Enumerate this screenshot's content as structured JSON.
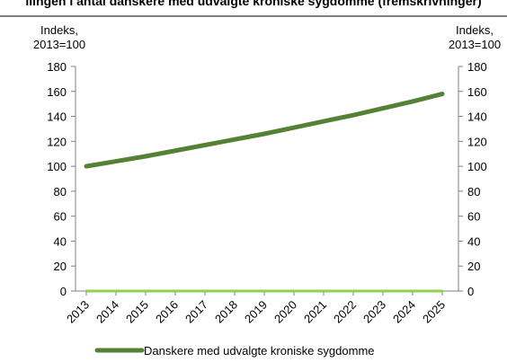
{
  "page": {
    "top_caption": "llingen i antal danskere med udvalgte kroniske sygdomme (fremskrivninger)"
  },
  "colors": {
    "line_main": "#548235",
    "line_zero": "#92d050",
    "axis": "#808080",
    "text": "#000000"
  },
  "chart_data": {
    "type": "line",
    "title": "",
    "ylabel_left": [
      "Indeks,",
      "2013=100"
    ],
    "ylabel_right": [
      "Indeks,",
      "2013=100"
    ],
    "xlabel": "",
    "ylim": [
      0,
      180
    ],
    "yticks": [
      0,
      20,
      40,
      60,
      80,
      100,
      120,
      140,
      160,
      180
    ],
    "grid": false,
    "legend_position": "bottom",
    "x": [
      "2013",
      "2014",
      "2015",
      "2016",
      "2017",
      "2018",
      "2019",
      "2020",
      "2021",
      "2022",
      "2023",
      "2024",
      "2025"
    ],
    "series": [
      {
        "name": "Danskere med udvalgte kroniske sygdomme",
        "values": [
          100,
          104,
          108,
          112.5,
          117,
          121.5,
          126,
          131,
          136,
          141,
          146.5,
          152,
          158
        ],
        "color": "#548235"
      },
      {
        "name": "",
        "values": [
          0,
          0,
          0,
          0,
          0,
          0,
          0,
          0,
          0,
          0,
          0,
          0,
          0
        ],
        "color": "#92d050"
      }
    ]
  }
}
